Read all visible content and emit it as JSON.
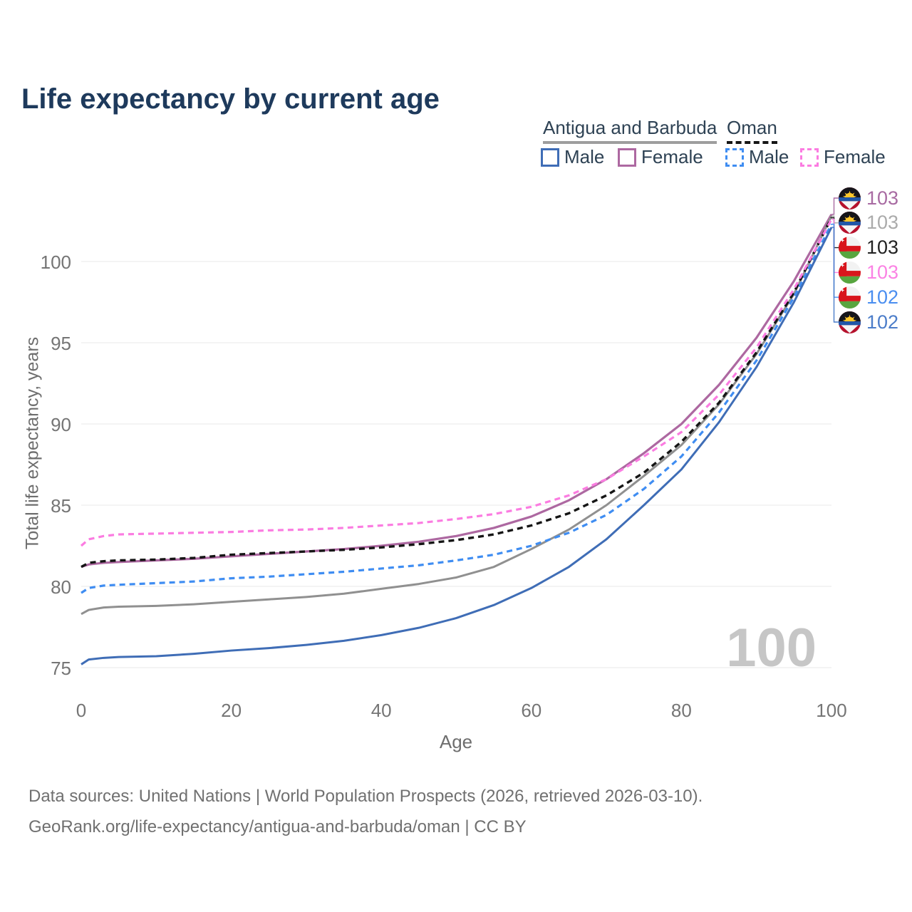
{
  "page": {
    "title": "Life expectancy by current age",
    "watermark_age": "100",
    "footer_line1": "Data sources: United Nations | World Population Prospects (2026, retrieved 2026-03-10).",
    "footer_line2": "GeoRank.org/life-expectancy/antigua-and-barbuda/oman | CC BY"
  },
  "legend": {
    "group1": {
      "label": "Antigua and Barbuda",
      "male_label": "Male",
      "female_label": "Female",
      "underline_color": "#9e9e9e",
      "underline_style": "solid",
      "male_color": "#3f6db6",
      "female_color": "#ad68a1"
    },
    "group2": {
      "label": "Oman",
      "male_label": "Male",
      "female_label": "Female",
      "underline_color": "#161616",
      "underline_style": "dashed",
      "male_color": "#3f8df2",
      "female_color": "#fb7ce1"
    }
  },
  "chart_data": {
    "type": "line",
    "title": "Life expectancy by current age",
    "xlabel": "Age",
    "ylabel": "Total life expectancy, years",
    "x_ticks": [
      0,
      20,
      40,
      60,
      80,
      100
    ],
    "y_ticks": [
      75,
      80,
      85,
      90,
      95,
      100
    ],
    "xlim": [
      0,
      100
    ],
    "ylim": [
      74,
      103.5
    ],
    "grid": "horizontal-only",
    "grid_color": "#ededed",
    "x": [
      0,
      1,
      3,
      5,
      10,
      15,
      20,
      25,
      30,
      35,
      40,
      45,
      50,
      55,
      60,
      65,
      70,
      75,
      80,
      85,
      90,
      95,
      100
    ],
    "series": [
      {
        "name": "Antigua and Barbuda — Female",
        "color": "#ad68a1",
        "dashed": false,
        "width": 3.2,
        "values": [
          81.2,
          81.35,
          81.45,
          81.5,
          81.6,
          81.7,
          81.85,
          82.0,
          82.15,
          82.3,
          82.5,
          82.75,
          83.1,
          83.6,
          84.3,
          85.3,
          86.6,
          88.2,
          90.0,
          92.4,
          95.3,
          98.8,
          102.9
        ]
      },
      {
        "name": "Antigua and Barbuda — Both sexes",
        "color": "#909090",
        "dashed": false,
        "width": 3,
        "values": [
          78.3,
          78.55,
          78.7,
          78.75,
          78.8,
          78.9,
          79.05,
          79.2,
          79.35,
          79.55,
          79.85,
          80.15,
          80.55,
          81.2,
          82.3,
          83.5,
          85.0,
          86.8,
          88.7,
          91.2,
          94.3,
          98.0,
          102.8
        ]
      },
      {
        "name": "Oman — Both sexes",
        "color": "#151515",
        "dashed": true,
        "width": 3.4,
        "values": [
          81.2,
          81.45,
          81.55,
          81.6,
          81.65,
          81.75,
          81.95,
          82.05,
          82.15,
          82.25,
          82.4,
          82.6,
          82.85,
          83.2,
          83.75,
          84.5,
          85.6,
          87.0,
          88.9,
          91.3,
          94.4,
          98.1,
          102.7
        ]
      },
      {
        "name": "Oman — Female",
        "color": "#fb7ce1",
        "dashed": true,
        "width": 3.2,
        "values": [
          82.5,
          82.9,
          83.1,
          83.2,
          83.25,
          83.3,
          83.35,
          83.45,
          83.5,
          83.6,
          83.75,
          83.9,
          84.15,
          84.45,
          84.9,
          85.6,
          86.6,
          88.0,
          89.5,
          91.8,
          94.7,
          98.3,
          102.6
        ]
      },
      {
        "name": "Oman — Male",
        "color": "#3f8df2",
        "dashed": true,
        "width": 3.2,
        "values": [
          79.6,
          79.9,
          80.05,
          80.1,
          80.2,
          80.3,
          80.5,
          80.6,
          80.75,
          80.9,
          81.1,
          81.3,
          81.6,
          81.95,
          82.5,
          83.3,
          84.4,
          86.0,
          88.0,
          90.7,
          93.9,
          97.8,
          102.3
        ]
      },
      {
        "name": "Antigua and Barbuda — Male",
        "color": "#3f6db6",
        "dashed": false,
        "width": 3,
        "values": [
          75.2,
          75.5,
          75.6,
          75.65,
          75.7,
          75.85,
          76.05,
          76.2,
          76.4,
          76.65,
          77.0,
          77.45,
          78.05,
          78.85,
          79.9,
          81.2,
          82.9,
          85.0,
          87.2,
          90.1,
          93.5,
          97.5,
          102.1
        ]
      }
    ],
    "end_labels": [
      {
        "series": 0,
        "value": "103",
        "color": "#a86ba2",
        "flag": "antigua-and-barbuda"
      },
      {
        "series": 1,
        "value": "103",
        "color": "#ababab",
        "flag": "antigua-and-barbuda"
      },
      {
        "series": 2,
        "value": "103",
        "color": "#222222",
        "flag": "oman"
      },
      {
        "series": 3,
        "value": "103",
        "color": "#fb82e4",
        "flag": "oman"
      },
      {
        "series": 4,
        "value": "102",
        "color": "#4a8ef0",
        "flag": "oman"
      },
      {
        "series": 5,
        "value": "102",
        "color": "#4c7dc9",
        "flag": "antigua-and-barbuda"
      }
    ]
  }
}
